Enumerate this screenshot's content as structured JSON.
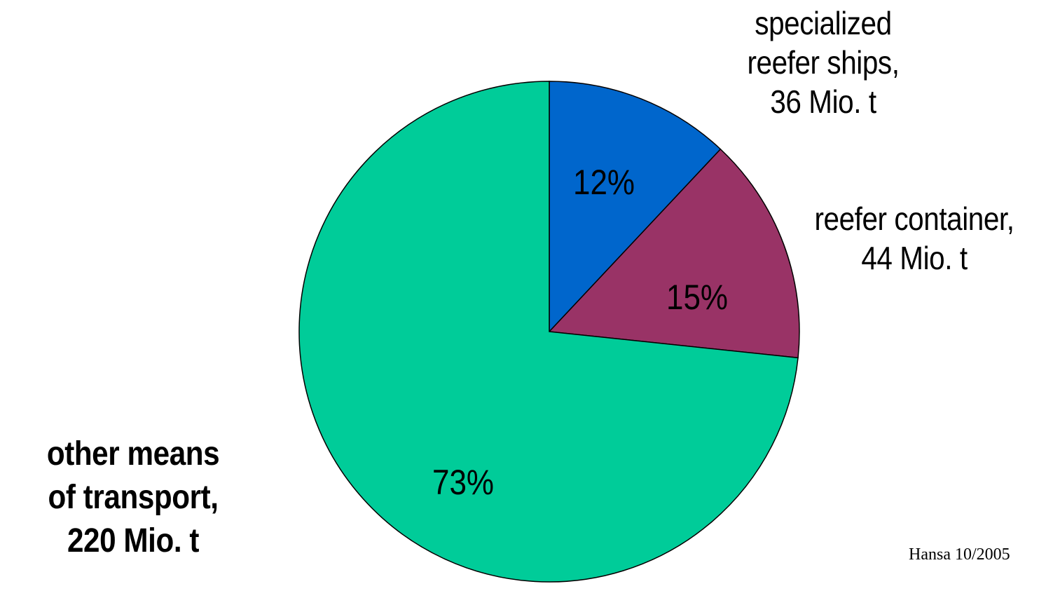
{
  "chart_data": {
    "type": "pie",
    "title": "",
    "slices": [
      {
        "key": "ships",
        "percent_label": "12%",
        "value": 36,
        "percent": 12,
        "color": "#0066cc",
        "label_lines": [
          "specialized",
          "reefer ships,",
          "36 Mio. t"
        ]
      },
      {
        "key": "container",
        "percent_label": "15%",
        "value": 44,
        "percent": 15,
        "color": "#993366",
        "label_lines": [
          "reefer container,",
          "44 Mio. t"
        ]
      },
      {
        "key": "other",
        "percent_label": "73%",
        "value": 220,
        "percent": 73,
        "color": "#00cc99",
        "label_lines": [
          "other means",
          "of transport,",
          "220 Mio. t"
        ]
      }
    ],
    "source": "Hansa 10/2005"
  }
}
